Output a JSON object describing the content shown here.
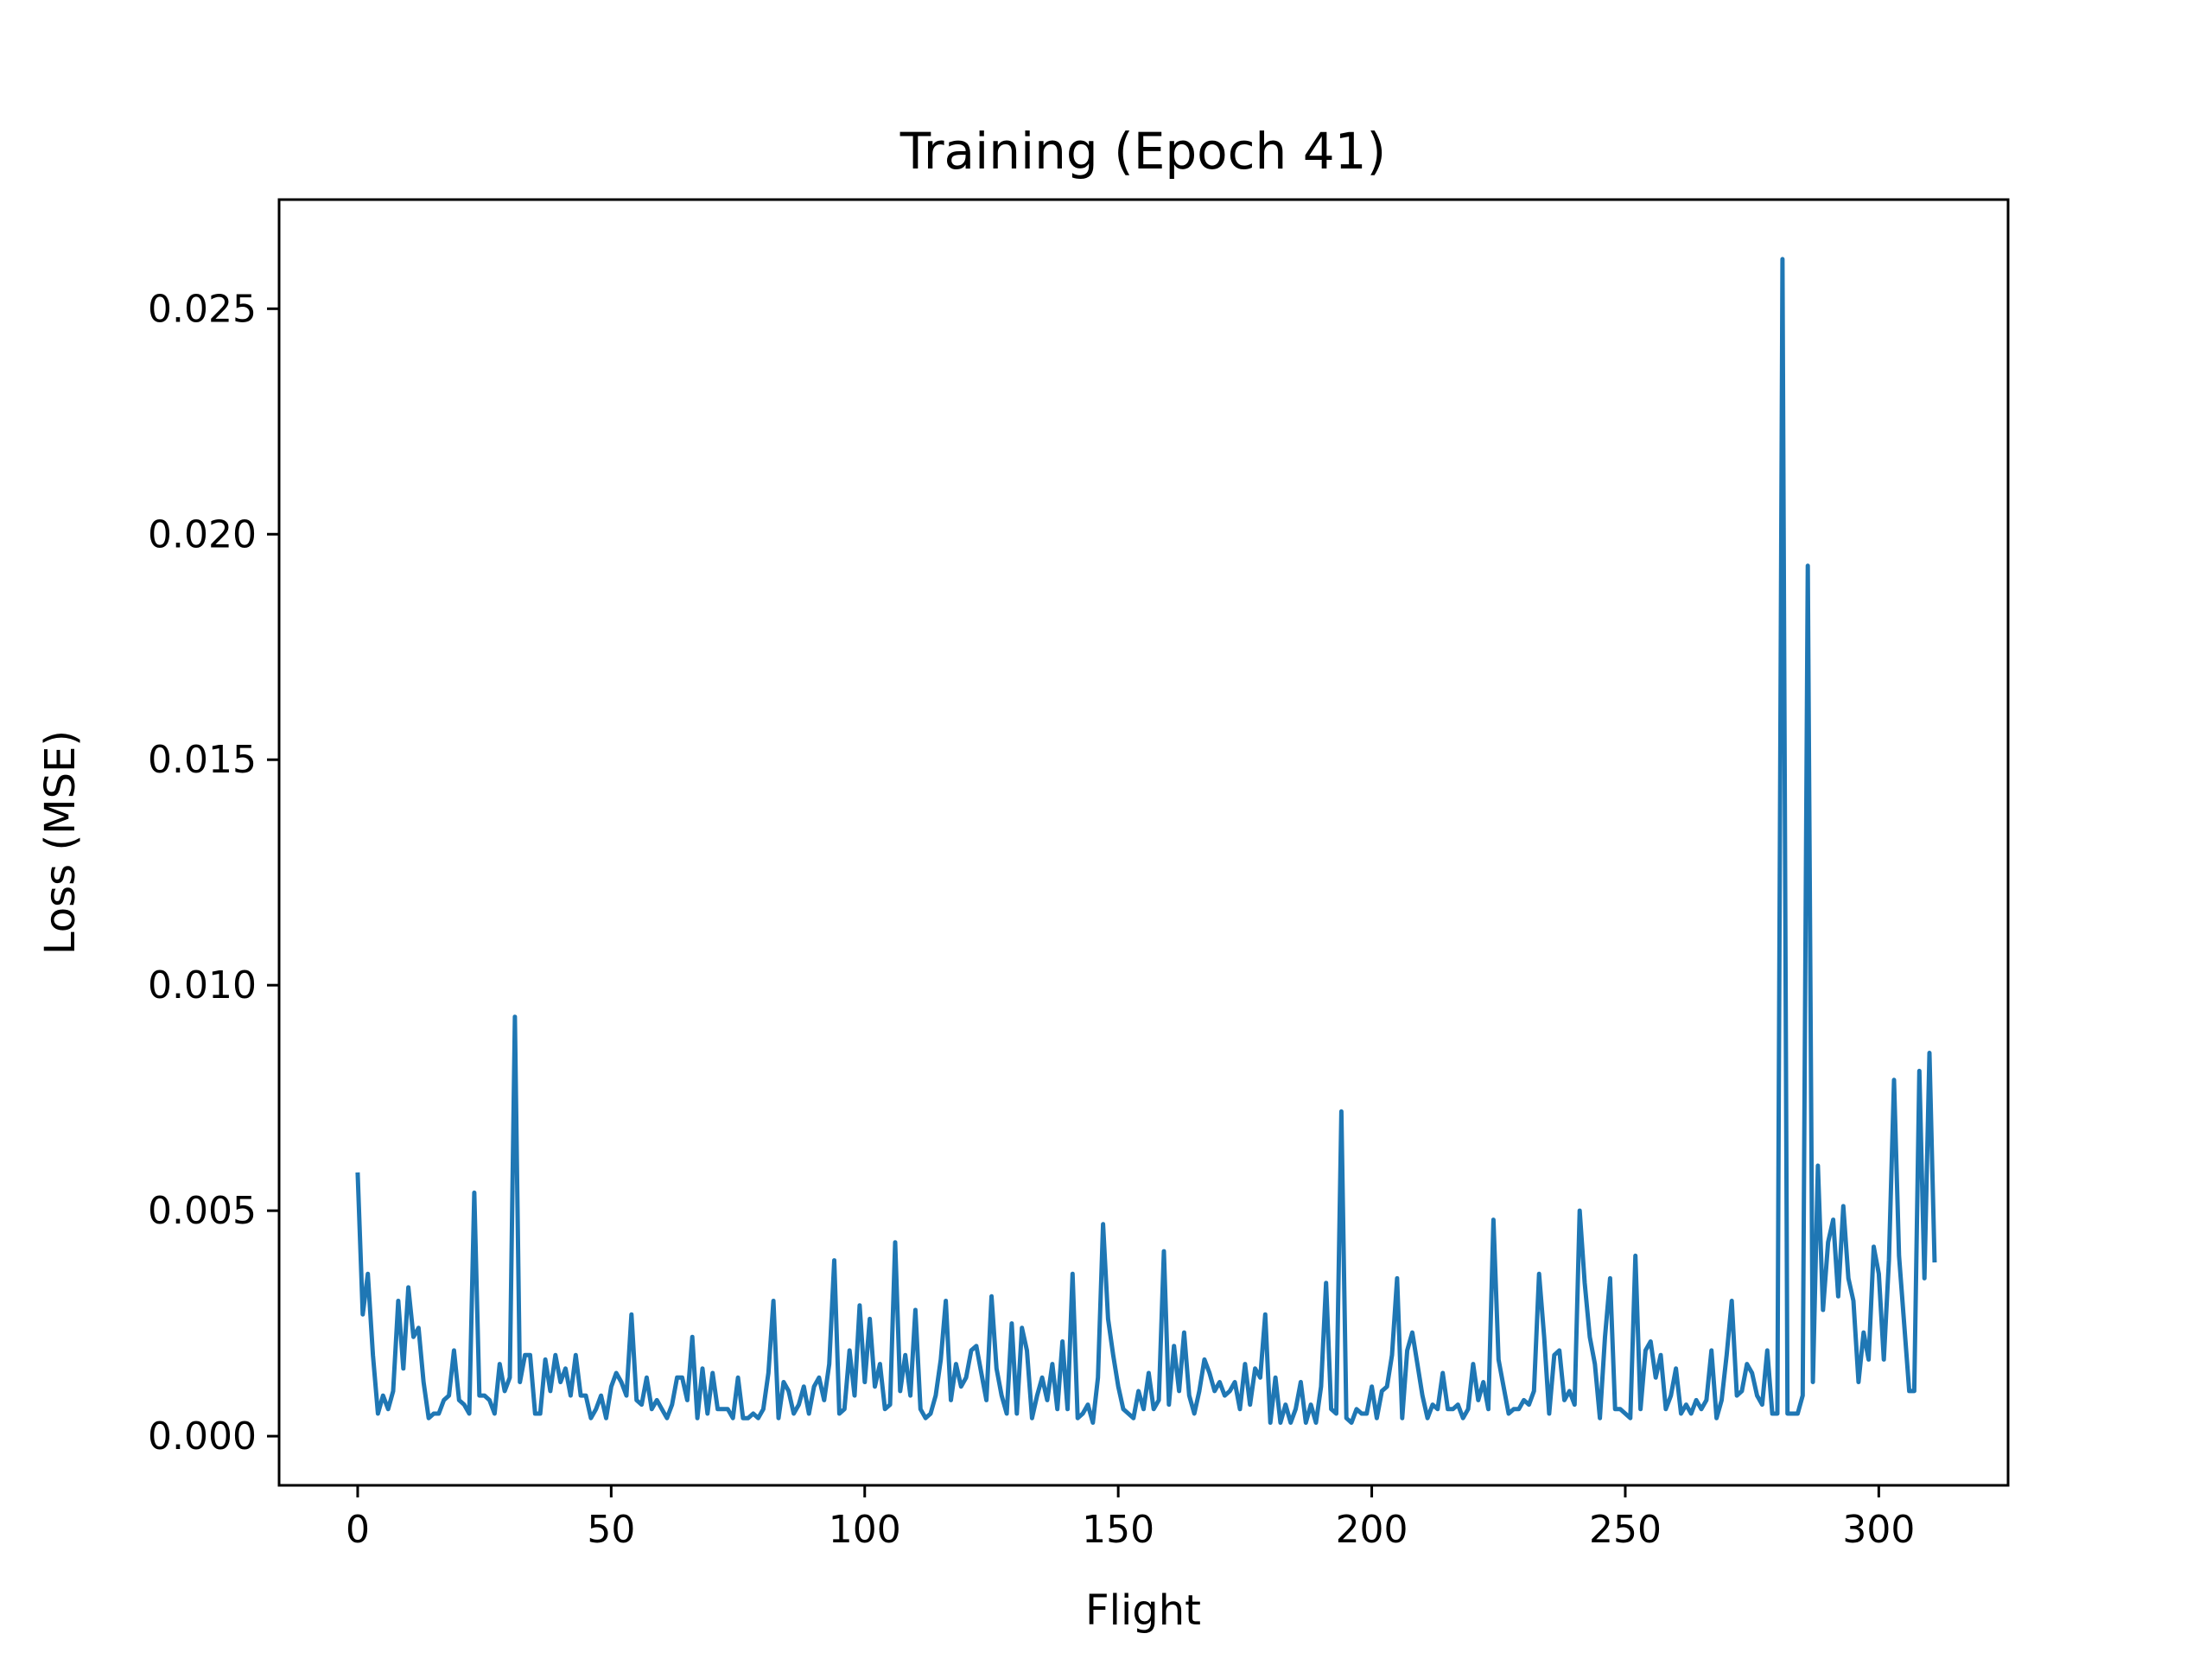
{
  "chart_data": {
    "type": "line",
    "title": "Training (Epoch 41)",
    "xlabel": "Flight",
    "ylabel": "Loss (MSE)",
    "xlim": [
      -15.5,
      325.5
    ],
    "ylim": [
      -0.00109,
      0.02742
    ],
    "xticks": [
      0,
      50,
      100,
      150,
      200,
      250,
      300
    ],
    "xtick_labels": [
      "0",
      "50",
      "100",
      "150",
      "200",
      "250",
      "300"
    ],
    "yticks": [
      0.0,
      0.005,
      0.01,
      0.015,
      0.02,
      0.025
    ],
    "ytick_labels": [
      "0.000",
      "0.005",
      "0.010",
      "0.015",
      "0.020",
      "0.025"
    ],
    "grid": false,
    "series_color": "#1f77b4",
    "series": [
      {
        "x_start": 0,
        "x_step": 1,
        "values": [
          0.0058,
          0.0027,
          0.0036,
          0.0018,
          0.0005,
          0.0009,
          0.0006,
          0.001,
          0.003,
          0.0015,
          0.0033,
          0.0022,
          0.0024,
          0.0012,
          0.0004,
          0.0005,
          0.0005,
          0.0008,
          0.0009,
          0.0019,
          0.0008,
          0.0007,
          0.0005,
          0.0054,
          0.0009,
          0.0009,
          0.0008,
          0.0005,
          0.0016,
          0.001,
          0.0013,
          0.0093,
          0.0012,
          0.0018,
          0.0018,
          0.0005,
          0.0005,
          0.0017,
          0.001,
          0.0018,
          0.0012,
          0.0015,
          0.0009,
          0.0018,
          0.0009,
          0.0009,
          0.0004,
          0.0006,
          0.0009,
          0.0004,
          0.0011,
          0.0014,
          0.0012,
          0.0009,
          0.0027,
          0.0008,
          0.0007,
          0.0013,
          0.0006,
          0.0008,
          0.0006,
          0.0004,
          0.0007,
          0.0013,
          0.0013,
          0.0008,
          0.0022,
          0.0004,
          0.0015,
          0.0005,
          0.0014,
          0.0006,
          0.0006,
          0.0006,
          0.0004,
          0.0013,
          0.0004,
          0.0004,
          0.0005,
          0.0004,
          0.0006,
          0.0014,
          0.003,
          0.0004,
          0.0012,
          0.001,
          0.0005,
          0.0007,
          0.0011,
          0.0005,
          0.0011,
          0.0013,
          0.0008,
          0.0016,
          0.0039,
          0.0005,
          0.0006,
          0.0019,
          0.0009,
          0.0029,
          0.0012,
          0.0026,
          0.0011,
          0.0016,
          0.0006,
          0.0007,
          0.0043,
          0.001,
          0.0018,
          0.0009,
          0.0028,
          0.0006,
          0.0004,
          0.0005,
          0.0009,
          0.0017,
          0.003,
          0.0008,
          0.0016,
          0.0011,
          0.0013,
          0.0019,
          0.002,
          0.0014,
          0.0008,
          0.0031,
          0.0015,
          0.0009,
          0.0005,
          0.0025,
          0.0005,
          0.0024,
          0.0019,
          0.0004,
          0.0009,
          0.0013,
          0.0008,
          0.0016,
          0.0006,
          0.0021,
          0.0006,
          0.0036,
          0.0004,
          0.0005,
          0.0007,
          0.0003,
          0.0013,
          0.0047,
          0.0026,
          0.0018,
          0.0011,
          0.0006,
          0.0005,
          0.0004,
          0.001,
          0.0006,
          0.0014,
          0.0006,
          0.0008,
          0.0041,
          0.0007,
          0.002,
          0.001,
          0.0023,
          0.0009,
          0.0005,
          0.001,
          0.0017,
          0.0014,
          0.001,
          0.0012,
          0.0009,
          0.001,
          0.0012,
          0.0006,
          0.0016,
          0.0007,
          0.0015,
          0.0013,
          0.0027,
          0.0003,
          0.0013,
          0.0003,
          0.0007,
          0.0003,
          0.0006,
          0.0012,
          0.0003,
          0.0007,
          0.0003,
          0.0011,
          0.0034,
          0.0006,
          0.0005,
          0.0072,
          0.0004,
          0.0003,
          0.0006,
          0.0005,
          0.0005,
          0.0011,
          0.0004,
          0.001,
          0.0011,
          0.0018,
          0.0035,
          0.0004,
          0.0019,
          0.0023,
          0.0016,
          0.0009,
          0.0004,
          0.0007,
          0.0006,
          0.0014,
          0.0006,
          0.0006,
          0.0007,
          0.0004,
          0.0006,
          0.0016,
          0.0008,
          0.0012,
          0.0006,
          0.0048,
          0.0017,
          0.0011,
          0.0005,
          0.0006,
          0.0006,
          0.0008,
          0.0007,
          0.001,
          0.0036,
          0.0022,
          0.0005,
          0.0018,
          0.0019,
          0.0008,
          0.001,
          0.0007,
          0.005,
          0.0034,
          0.0022,
          0.0016,
          0.0004,
          0.0022,
          0.0035,
          0.0006,
          0.0006,
          0.0005,
          0.0004,
          0.004,
          0.0006,
          0.0019,
          0.0021,
          0.0013,
          0.0018,
          0.0006,
          0.0009,
          0.0015,
          0.0005,
          0.0007,
          0.0005,
          0.0008,
          0.0006,
          0.0008,
          0.0019,
          0.0004,
          0.0008,
          0.0018,
          0.003,
          0.0009,
          0.001,
          0.0016,
          0.0014,
          0.0009,
          0.0007,
          0.0019,
          0.0005,
          0.0005,
          0.0261,
          0.0005,
          0.0005,
          0.0005,
          0.0009,
          0.0193,
          0.0012,
          0.006,
          0.0028,
          0.0043,
          0.0048,
          0.0031,
          0.0051,
          0.0035,
          0.003,
          0.0012,
          0.0023,
          0.0017,
          0.0042,
          0.0036,
          0.0017,
          0.0039,
          0.0079,
          0.004,
          0.0025,
          0.001,
          0.001,
          0.0081,
          0.0035,
          0.0085,
          0.0039
        ]
      }
    ]
  }
}
